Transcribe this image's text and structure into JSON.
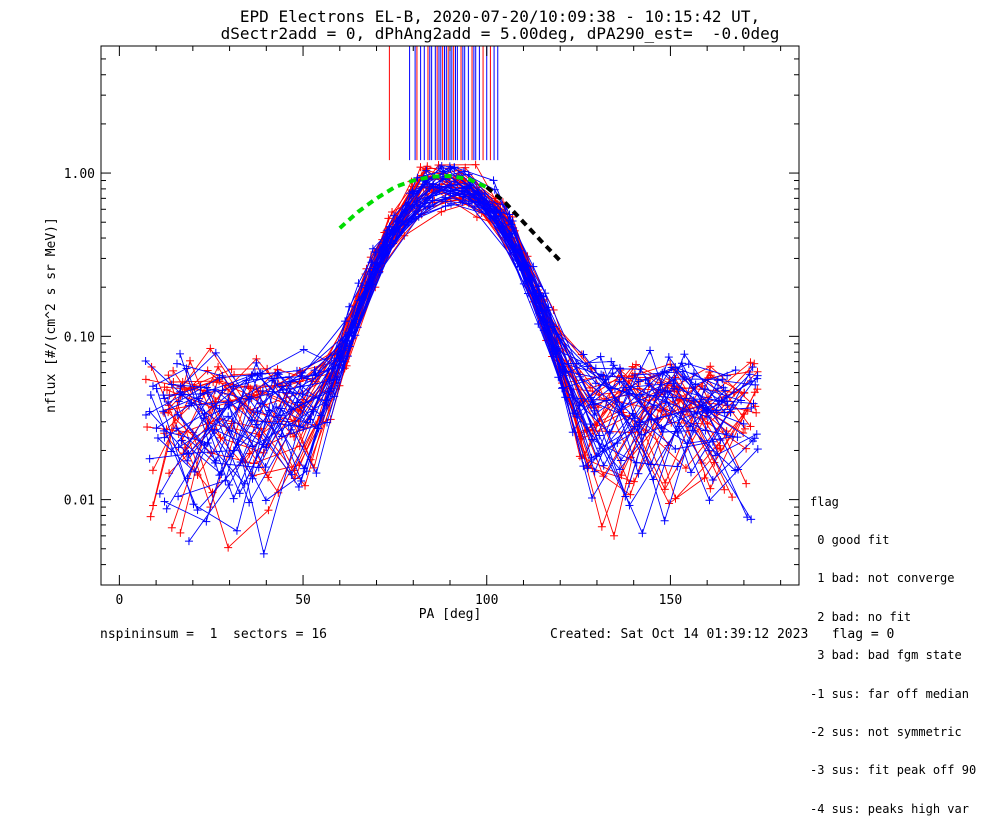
{
  "chart_data": {
    "type": "line",
    "title": "EPD Electrons EL-B, 2020-07-20/10:09:38 - 10:15:42 UT,",
    "subtitle": "dSectr2add = 0, dPhAng2add = 5.00deg, dPA290_est=  -0.0deg",
    "xlabel": "PA [deg]",
    "ylabel": "nflux [#/(cm^2 s sr MeV)]",
    "xlim": [
      -5,
      185
    ],
    "ylim": [
      0.003,
      6.0
    ],
    "yscale": "log",
    "x_ticks": [
      0,
      50,
      100,
      150
    ],
    "x_tick_labels": [
      "0",
      "50",
      "100",
      "150"
    ],
    "y_ticks": [
      0.01,
      0.1,
      1.0
    ],
    "y_tick_labels": [
      "0.01",
      "0.10",
      "1.00"
    ],
    "series_colors": [
      "#ff0000",
      "#0000ff"
    ],
    "fit_curves": [
      {
        "color": "#00dd00",
        "style": "dashed",
        "x": [
          60,
          65,
          70,
          75,
          80,
          85,
          90,
          95,
          100
        ],
        "y": [
          0.46,
          0.58,
          0.7,
          0.82,
          0.9,
          0.95,
          0.96,
          0.92,
          0.82
        ]
      },
      {
        "color": "#000000",
        "style": "dashed",
        "x": [
          100,
          105,
          110,
          115,
          120
        ],
        "y": [
          0.82,
          0.66,
          0.5,
          0.38,
          0.29
        ]
      }
    ],
    "peak_marker_x_red": [
      73.5,
      81,
      84,
      86.5,
      88,
      89.5,
      91,
      93,
      96,
      99,
      101
    ],
    "peak_marker_x_blue": [
      79,
      80.5,
      82,
      83,
      84.5,
      85,
      86,
      87,
      87.5,
      88.5,
      89,
      90,
      90.5,
      91.5,
      92,
      93.5,
      94,
      95,
      96.5,
      97,
      98,
      100,
      102,
      103
    ]
  },
  "footer": {
    "left": "nspininsum =  1  sectors = 16",
    "right": "Created: Sat Oct 14 01:39:12 2023   flag = 0"
  },
  "legend": {
    "title": "flag",
    "items": [
      " 0 good fit",
      " 1 bad: not converge",
      " 2 bad: no fit",
      " 3 bad: bad fgm state",
      "-1 sus: far off median",
      "-2 sus: not symmetric",
      "-3 sus: fit peak off 90",
      "-4 sus: peaks high var"
    ]
  }
}
